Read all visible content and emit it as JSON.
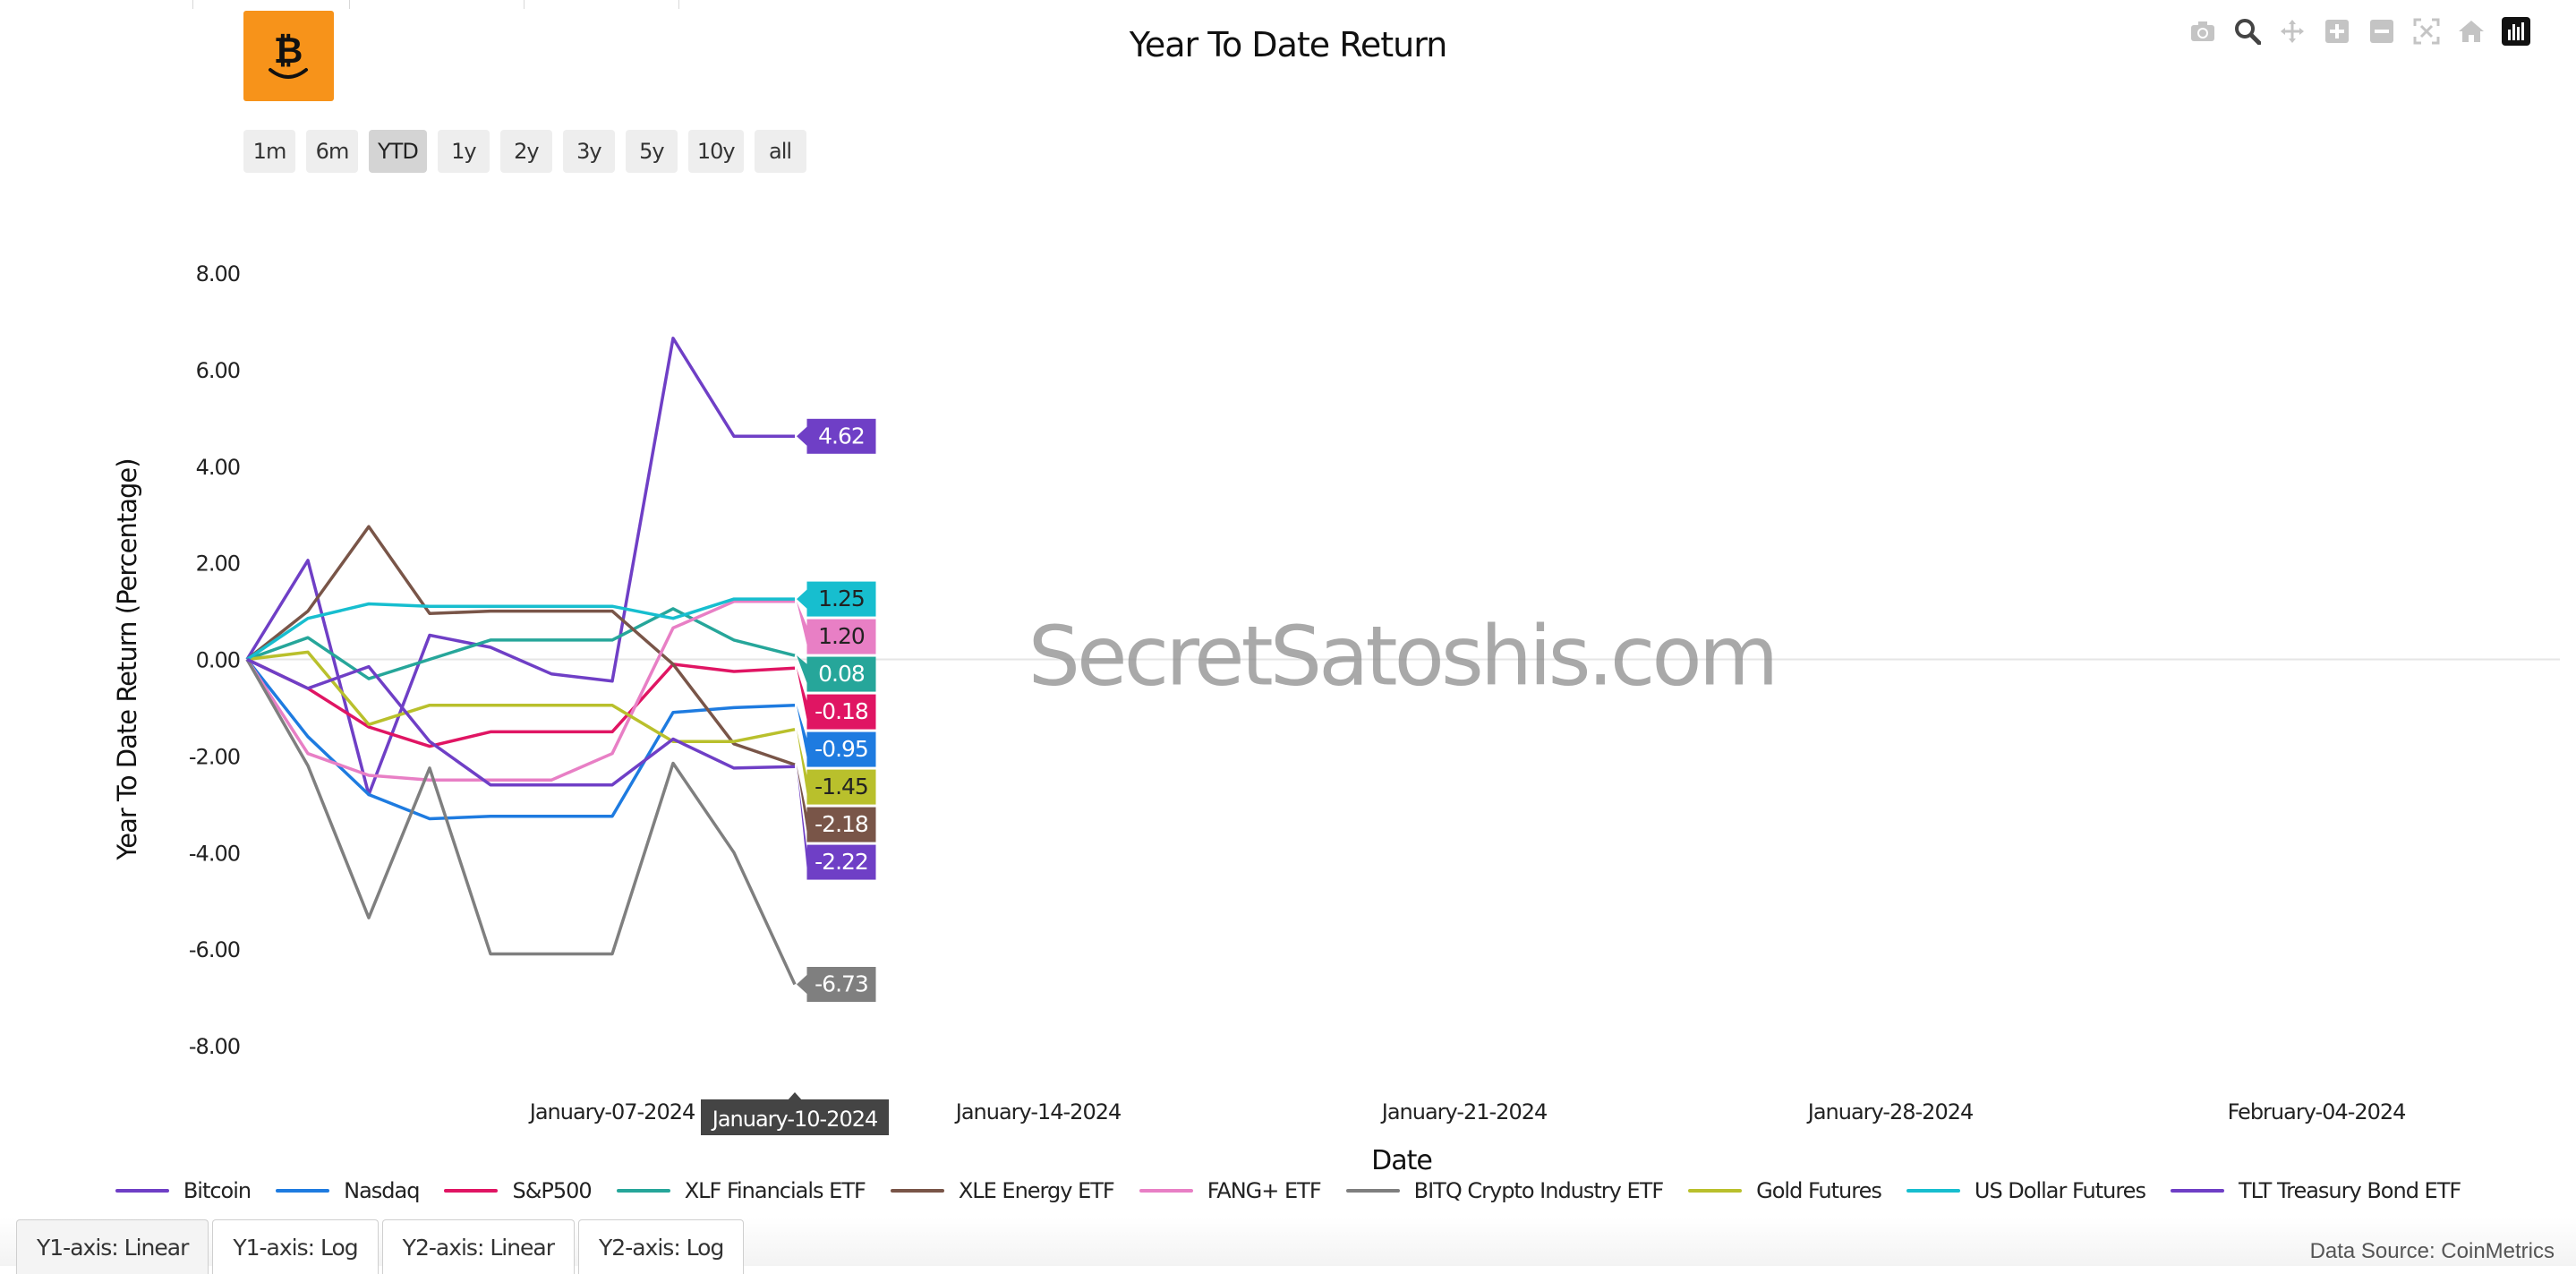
{
  "title": "Year To Date Return",
  "range_buttons": [
    "1m",
    "6m",
    "YTD",
    "1y",
    "2y",
    "3y",
    "5y",
    "10y",
    "all"
  ],
  "active_range": "YTD",
  "bottom_tabs": [
    "Y1-axis: Linear",
    "Y1-axis: Log",
    "Y2-axis: Linear",
    "Y2-axis: Log"
  ],
  "data_source": "Data Source: CoinMetrics",
  "watermark": "SecretSatoshis.com",
  "hover_date": "January-10-2024",
  "modebar_icons": [
    "camera-icon",
    "zoom-icon",
    "pan-icon",
    "zoom-in-icon",
    "zoom-out-icon",
    "autoscale-icon",
    "reset-axes-icon",
    "plotly-logo-icon"
  ],
  "chart_data": {
    "type": "line",
    "title": "Year To Date Return",
    "xlabel": "Date",
    "ylabel": "Year To Date Return (Percentage)",
    "ylim": [
      -8,
      8
    ],
    "xlim": [
      "2024-01-01",
      "2024-02-08"
    ],
    "yticks": [
      "8.00",
      "6.00",
      "4.00",
      "2.00",
      "0.00",
      "-2.00",
      "-4.00",
      "-6.00",
      "-8.00"
    ],
    "ytick_values": [
      8,
      6,
      4,
      2,
      0,
      -2,
      -4,
      -6,
      -8
    ],
    "xticks": [
      "January-07-2024",
      "January-14-2024",
      "January-21-2024",
      "January-28-2024",
      "February-04-2024"
    ],
    "xtick_values": [
      "2024-01-07",
      "2024-01-14",
      "2024-01-21",
      "2024-01-28",
      "2024-02-04"
    ],
    "grid": false,
    "legend_position": "bottom",
    "x": [
      "2024-01-01",
      "2024-01-02",
      "2024-01-03",
      "2024-01-04",
      "2024-01-05",
      "2024-01-06",
      "2024-01-07",
      "2024-01-08",
      "2024-01-09",
      "2024-01-10"
    ],
    "series": [
      {
        "name": "Bitcoin",
        "color": "#6f3fc6",
        "values": [
          0,
          2.05,
          -2.8,
          0.5,
          0.25,
          -0.3,
          -0.45,
          6.65,
          4.62,
          4.62
        ],
        "end_label": "4.62"
      },
      {
        "name": "Nasdaq",
        "color": "#1e7be0",
        "values": [
          0,
          -1.6,
          -2.8,
          -3.3,
          -3.25,
          -3.25,
          -3.25,
          -1.1,
          -1.0,
          -0.95
        ],
        "end_label": "-0.95"
      },
      {
        "name": "S&P500",
        "color": "#e01563",
        "values": [
          0,
          -0.6,
          -1.4,
          -1.8,
          -1.5,
          -1.5,
          -1.5,
          -0.1,
          -0.25,
          -0.18
        ],
        "end_label": "-0.18"
      },
      {
        "name": "XLF Financials ETF",
        "color": "#26a69a",
        "values": [
          0,
          0.45,
          -0.4,
          0.0,
          0.4,
          0.4,
          0.4,
          1.05,
          0.4,
          0.08
        ],
        "end_label": "0.08"
      },
      {
        "name": "XLE Energy ETF",
        "color": "#795548",
        "values": [
          0,
          1.0,
          2.75,
          0.95,
          1.0,
          1.0,
          1.0,
          -0.1,
          -1.75,
          -2.18
        ],
        "end_label": "-2.18"
      },
      {
        "name": "FANG+ ETF",
        "color": "#e87fc5",
        "values": [
          0,
          -1.95,
          -2.4,
          -2.5,
          -2.5,
          -2.5,
          -1.95,
          0.65,
          1.2,
          1.2
        ],
        "end_label": "1.20"
      },
      {
        "name": "BITQ Crypto Industry ETF",
        "color": "#7f7f7f",
        "values": [
          0,
          -2.2,
          -5.35,
          -2.25,
          -6.1,
          -6.1,
          -6.1,
          -2.15,
          -4.0,
          -6.73
        ],
        "end_label": "-6.73"
      },
      {
        "name": "Gold Futures",
        "color": "#b9c02c",
        "values": [
          0,
          0.15,
          -1.35,
          -0.95,
          -0.95,
          -0.95,
          -0.95,
          -1.7,
          -1.7,
          -1.45
        ],
        "end_label": "-1.45"
      },
      {
        "name": "US Dollar Futures",
        "color": "#17becf",
        "values": [
          0,
          0.85,
          1.15,
          1.1,
          1.1,
          1.1,
          1.1,
          0.85,
          1.25,
          1.25
        ],
        "end_label": "1.25"
      },
      {
        "name": "TLT Treasury Bond ETF",
        "color": "#6f3fc6",
        "values": [
          0,
          -0.6,
          -0.15,
          -1.7,
          -2.6,
          -2.6,
          -2.6,
          -1.65,
          -2.25,
          -2.22
        ],
        "end_label": "-2.22"
      }
    ]
  }
}
